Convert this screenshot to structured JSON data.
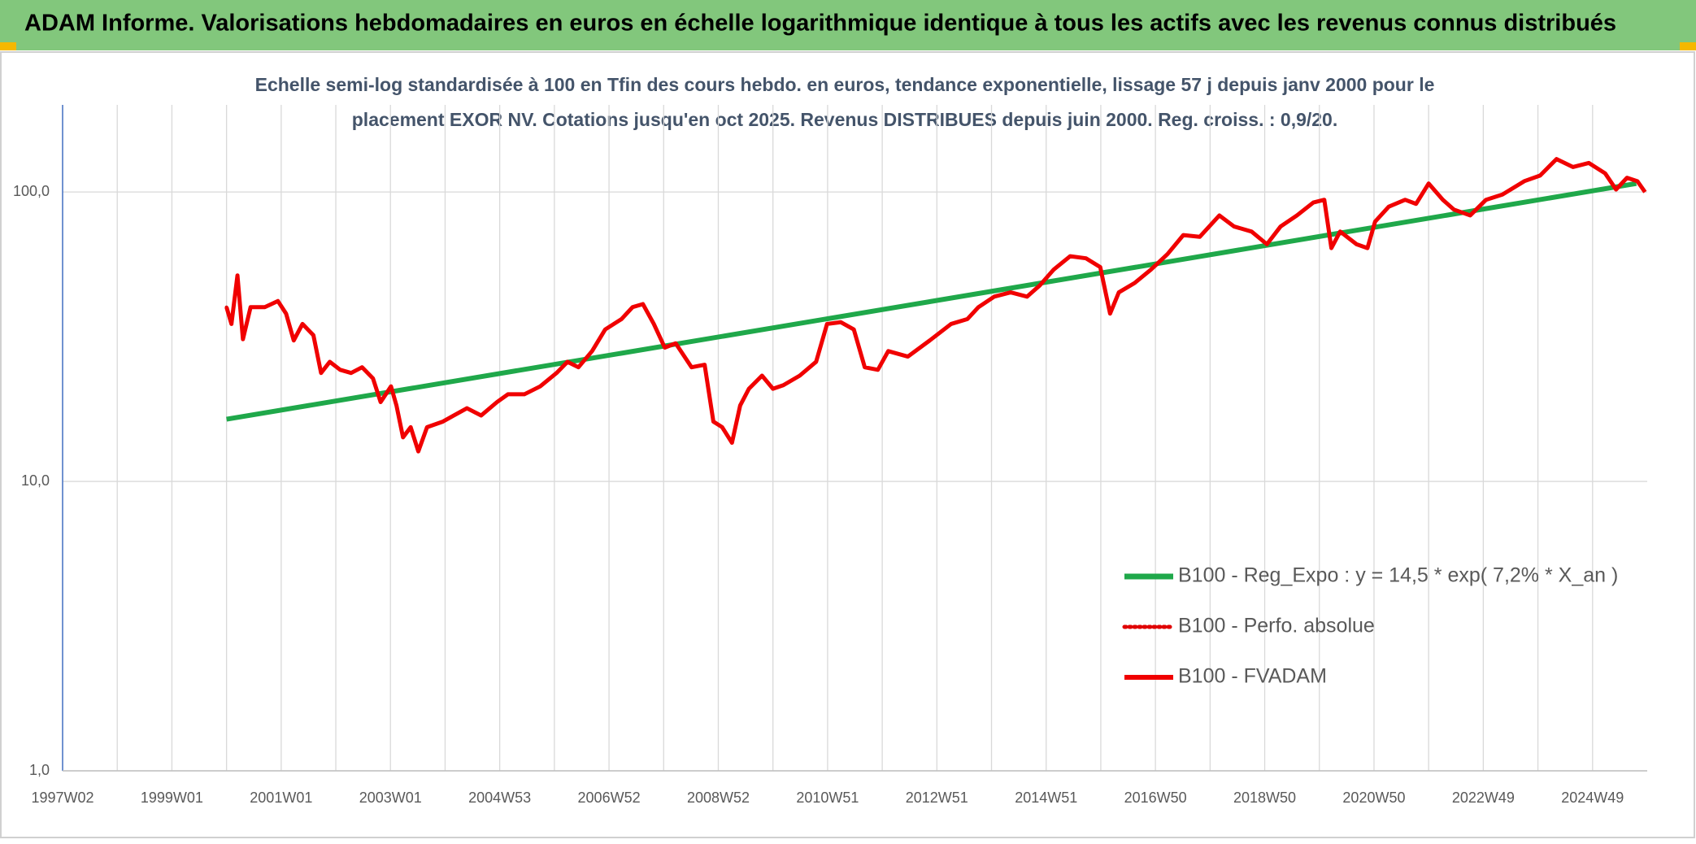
{
  "chart_data": {
    "type": "line",
    "title": "ADAM Informe. Valorisations hebdomadaires en euros en échelle logarithmique identique à tous les actifs avec les revenus connus distribués",
    "subtitle": [
      "Echelle semi-log standardisée à 100 en Tfin des cours hebdo. en euros, tendance exponentielle, lissage 57 j depuis janv 2000 pour le",
      "placement EXOR NV. Cotations jusqu'en oct 2025. Revenus DISTRIBUES depuis juin 2000. Reg. croiss. : 0,9/20."
    ],
    "log_scale": true,
    "grid": true,
    "legend_position": "right",
    "xlim": [
      1997,
      2026
    ],
    "xticks": [
      {
        "value": 1997,
        "label": "1997W02"
      },
      {
        "value": 1999,
        "label": "1999W01"
      },
      {
        "value": 2001,
        "label": "2001W01"
      },
      {
        "value": 2003,
        "label": "2003W01"
      },
      {
        "value": 2005,
        "label": "2004W53"
      },
      {
        "value": 2007,
        "label": "2006W52"
      },
      {
        "value": 2009,
        "label": "2008W52"
      },
      {
        "value": 2011,
        "label": "2010W51"
      },
      {
        "value": 2013,
        "label": "2012W51"
      },
      {
        "value": 2015,
        "label": "2014W51"
      },
      {
        "value": 2017,
        "label": "2016W50"
      },
      {
        "value": 2019,
        "label": "2018W50"
      },
      {
        "value": 2021,
        "label": "2020W50"
      },
      {
        "value": 2023,
        "label": "2022W49"
      },
      {
        "value": 2025,
        "label": "2024W49"
      }
    ],
    "ylim": [
      1,
      200
    ],
    "yticks": [
      {
        "value": 1,
        "label": "1,0"
      },
      {
        "value": 10,
        "label": "10,0"
      },
      {
        "value": 100,
        "label": "100,0"
      }
    ],
    "series": [
      {
        "name": "B100 - Reg_Expo : y = 14,5 * exp( 7,2% *  X_an )",
        "color": "#1fa84a",
        "style": "solid",
        "x": [
          2000.0,
          2025.8
        ],
        "values": [
          16.4,
          107
        ]
      },
      {
        "name": "B100 - Perfo. absolue",
        "color": "#e00000",
        "style": "dotted",
        "x": [
          2000.0,
          2000.09,
          2000.2,
          2000.3,
          2000.44,
          2000.7,
          2000.94,
          2001.09,
          2001.23,
          2001.39,
          2001.59,
          2001.73,
          2001.89,
          2002.08,
          2002.28,
          2002.48,
          2002.68,
          2002.82,
          2003.01,
          2003.11,
          2003.23,
          2003.37,
          2003.51,
          2003.67,
          2003.96,
          2004.16,
          2004.4,
          2004.66,
          2004.95,
          2005.15,
          2005.45,
          2005.74,
          2006.04,
          2006.24,
          2006.44,
          2006.69,
          2006.93,
          2007.23,
          2007.43,
          2007.62,
          2007.82,
          2008.02,
          2008.22,
          2008.51,
          2008.75,
          2008.91,
          2009.07,
          2009.25,
          2009.4,
          2009.56,
          2009.8,
          2010.0,
          2010.19,
          2010.49,
          2010.79,
          2010.99,
          2011.24,
          2011.48,
          2011.68,
          2011.92,
          2012.11,
          2012.47,
          2012.87,
          2013.26,
          2013.56,
          2013.76,
          2014.05,
          2014.35,
          2014.65,
          2014.88,
          2015.14,
          2015.44,
          2015.73,
          2015.99,
          2016.17,
          2016.33,
          2016.62,
          2016.92,
          2017.22,
          2017.51,
          2017.81,
          2018.17,
          2018.44,
          2018.76,
          2019.04,
          2019.29,
          2019.59,
          2019.89,
          2020.09,
          2020.22,
          2020.38,
          2020.68,
          2020.88,
          2021.02,
          2021.27,
          2021.57,
          2021.77,
          2022.0,
          2022.26,
          2022.46,
          2022.76,
          2023.05,
          2023.35,
          2023.75,
          2024.04,
          2024.34,
          2024.64,
          2024.93,
          2025.23,
          2025.43,
          2025.63,
          2025.82,
          2025.96
        ],
        "values": [
          40,
          35,
          51.5,
          31,
          40,
          40,
          42,
          38,
          30.7,
          35,
          32,
          23.7,
          25.9,
          24.3,
          23.7,
          24.8,
          22.7,
          18.8,
          21.3,
          18.3,
          14.2,
          15.4,
          12.7,
          15.4,
          16.1,
          16.9,
          17.9,
          16.9,
          18.8,
          20,
          20,
          21.3,
          23.7,
          25.9,
          24.8,
          28.2,
          33.5,
          36.4,
          40,
          41,
          35,
          29,
          30,
          24.8,
          25.3,
          16.1,
          15.4,
          13.6,
          18.3,
          20.9,
          23.2,
          20.9,
          21.5,
          23.2,
          25.9,
          35,
          35.5,
          33.5,
          24.8,
          24.3,
          28.2,
          27,
          30.7,
          35,
          36.4,
          40,
          43.5,
          45,
          43.5,
          47.5,
          54,
          60,
          59,
          55,
          38,
          45,
          48.5,
          54,
          61,
          71,
          70,
          83,
          76,
          73,
          66,
          76,
          83,
          92,
          94,
          64,
          73,
          66,
          64,
          79,
          89,
          94,
          91,
          107,
          94,
          87,
          83,
          94,
          98,
          109,
          114,
          130,
          122,
          126,
          116,
          102,
          112,
          109,
          100
        ]
      },
      {
        "name": "B100 - FVADAM",
        "color": "#f00000",
        "style": "solid",
        "x": [
          2000.0,
          2000.09,
          2000.2,
          2000.3,
          2000.44,
          2000.7,
          2000.94,
          2001.09,
          2001.23,
          2001.39,
          2001.59,
          2001.73,
          2001.89,
          2002.08,
          2002.28,
          2002.48,
          2002.68,
          2002.82,
          2003.01,
          2003.11,
          2003.23,
          2003.37,
          2003.51,
          2003.67,
          2003.96,
          2004.16,
          2004.4,
          2004.66,
          2004.95,
          2005.15,
          2005.45,
          2005.74,
          2006.04,
          2006.24,
          2006.44,
          2006.69,
          2006.93,
          2007.23,
          2007.43,
          2007.62,
          2007.82,
          2008.02,
          2008.22,
          2008.51,
          2008.75,
          2008.91,
          2009.07,
          2009.25,
          2009.4,
          2009.56,
          2009.8,
          2010.0,
          2010.19,
          2010.49,
          2010.79,
          2010.99,
          2011.24,
          2011.48,
          2011.68,
          2011.92,
          2012.11,
          2012.47,
          2012.87,
          2013.26,
          2013.56,
          2013.76,
          2014.05,
          2014.35,
          2014.65,
          2014.88,
          2015.14,
          2015.44,
          2015.73,
          2015.99,
          2016.17,
          2016.33,
          2016.62,
          2016.92,
          2017.22,
          2017.51,
          2017.81,
          2018.17,
          2018.44,
          2018.76,
          2019.04,
          2019.29,
          2019.59,
          2019.89,
          2020.09,
          2020.22,
          2020.38,
          2020.68,
          2020.88,
          2021.02,
          2021.27,
          2021.57,
          2021.77,
          2022.0,
          2022.26,
          2022.46,
          2022.76,
          2023.05,
          2023.35,
          2023.75,
          2024.04,
          2024.34,
          2024.64,
          2024.93,
          2025.23,
          2025.43,
          2025.63,
          2025.82,
          2025.96
        ],
        "values": [
          40,
          35,
          51.5,
          31,
          40,
          40,
          42,
          38,
          30.7,
          35,
          32,
          23.7,
          25.9,
          24.3,
          23.7,
          24.8,
          22.7,
          18.8,
          21.3,
          18.3,
          14.2,
          15.4,
          12.7,
          15.4,
          16.1,
          16.9,
          17.9,
          16.9,
          18.8,
          20,
          20,
          21.3,
          23.7,
          25.9,
          24.8,
          28.2,
          33.5,
          36.4,
          40,
          41,
          35,
          29,
          30,
          24.8,
          25.3,
          16.1,
          15.4,
          13.6,
          18.3,
          20.9,
          23.2,
          20.9,
          21.5,
          23.2,
          25.9,
          35,
          35.5,
          33.5,
          24.8,
          24.3,
          28.2,
          27,
          30.7,
          35,
          36.4,
          40,
          43.5,
          45,
          43.5,
          47.5,
          54,
          60,
          59,
          55,
          38,
          45,
          48.5,
          54,
          61,
          71,
          70,
          83,
          76,
          73,
          66,
          76,
          83,
          92,
          94,
          64,
          73,
          66,
          64,
          79,
          89,
          94,
          91,
          107,
          94,
          87,
          83,
          94,
          98,
          109,
          114,
          130,
          122,
          126,
          116,
          102,
          112,
          109,
          100
        ]
      }
    ]
  }
}
